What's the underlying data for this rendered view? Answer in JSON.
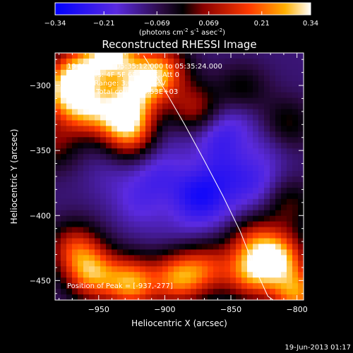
{
  "colorbar": {
    "ticks": [
      "-0.34",
      "-0.21",
      "-0.069",
      "0.069",
      "0.21",
      "0.34"
    ],
    "units_main": "(photons cm",
    "units_exp1": "-2",
    "units_mid": " s",
    "units_exp2": "-1",
    "units_mid2": " asec",
    "units_exp3": "-2",
    "units_close": ")",
    "range": [
      -0.34,
      0.34
    ]
  },
  "header": {
    "time_range": "19-May-2004 05:35:12.000 to 05:35:24.000",
    "detectors": "Detectors: 4F 5F 6F 7F 8F, Att 0",
    "energy": "Energy Range: 3.0 - 6.0 keV",
    "clean": "Clean    Total counts: 4.53E+03"
  },
  "peak_label": "Position of Peak = [-937,-277]",
  "footer_date": "19-Jun-2013 01:17",
  "colors": {
    "background": "#000000",
    "text": "#ffffff",
    "limb": "#ffffff"
  },
  "chart_data": {
    "type": "heatmap",
    "title": "Reconstructed RHESSI Image",
    "xlabel": "Heliocentric X (arcsec)",
    "ylabel": "Heliocentric Y (arcsec)",
    "xlim": [
      -983,
      -795
    ],
    "ylim": [
      -465,
      -275
    ],
    "xticks": [
      -950,
      -900,
      -850,
      -800
    ],
    "yticks": [
      -300,
      -350,
      -400,
      -450
    ],
    "colormap": "blue-purple-black-red-yellow-white",
    "value_range": [
      -0.34,
      0.34
    ],
    "blobs": [
      {
        "x": -940,
        "y": -275,
        "value": 0.33
      },
      {
        "x": -965,
        "y": -290,
        "value": 0.24
      },
      {
        "x": -960,
        "y": -318,
        "value": 0.22
      },
      {
        "x": -932,
        "y": -322,
        "value": 0.27
      },
      {
        "x": -918,
        "y": -300,
        "value": 0.2
      },
      {
        "x": -902,
        "y": -288,
        "value": 0.18
      },
      {
        "x": -925,
        "y": -338,
        "value": 0.12
      },
      {
        "x": -980,
        "y": -305,
        "value": 0.16
      },
      {
        "x": -878,
        "y": -318,
        "value": 0.1
      },
      {
        "x": -985,
        "y": -345,
        "value": 0.05
      },
      {
        "x": -955,
        "y": -445,
        "value": 0.23
      },
      {
        "x": -925,
        "y": -452,
        "value": 0.26
      },
      {
        "x": -890,
        "y": -448,
        "value": 0.22
      },
      {
        "x": -968,
        "y": -425,
        "value": 0.14
      },
      {
        "x": -868,
        "y": -440,
        "value": 0.12
      },
      {
        "x": -835,
        "y": -445,
        "value": 0.2
      },
      {
        "x": -815,
        "y": -432,
        "value": 0.28
      },
      {
        "x": -800,
        "y": -460,
        "value": 0.24
      },
      {
        "x": -835,
        "y": -418,
        "value": 0.1
      },
      {
        "x": -808,
        "y": -392,
        "value": 0.06
      },
      {
        "x": -842,
        "y": -305,
        "value": 0.04
      },
      {
        "x": -808,
        "y": -330,
        "value": 0.03
      },
      {
        "x": -875,
        "y": -385,
        "value": -0.28
      },
      {
        "x": -905,
        "y": -368,
        "value": -0.2
      },
      {
        "x": -920,
        "y": -390,
        "value": -0.18
      },
      {
        "x": -855,
        "y": -368,
        "value": -0.2
      },
      {
        "x": -860,
        "y": -340,
        "value": -0.22
      },
      {
        "x": -845,
        "y": -320,
        "value": -0.18
      },
      {
        "x": -822,
        "y": -345,
        "value": -0.16
      },
      {
        "x": -850,
        "y": -400,
        "value": -0.16
      },
      {
        "x": -818,
        "y": -395,
        "value": -0.14
      },
      {
        "x": -942,
        "y": -370,
        "value": -0.14
      },
      {
        "x": -960,
        "y": -395,
        "value": -0.1
      },
      {
        "x": -905,
        "y": -412,
        "value": -0.12
      },
      {
        "x": -880,
        "y": -412,
        "value": -0.14
      },
      {
        "x": -830,
        "y": -375,
        "value": -0.2
      },
      {
        "x": -895,
        "y": -340,
        "value": -0.14
      }
    ],
    "limb": {
      "type": "line",
      "x": [
        -916,
        -902,
        -885,
        -870,
        -856,
        -843,
        -832,
        -822,
        -818
      ],
      "y": [
        -277,
        -300,
        -330,
        -358,
        -385,
        -412,
        -440,
        -462,
        -465
      ]
    },
    "peak_position": [
      -937,
      -277
    ]
  }
}
